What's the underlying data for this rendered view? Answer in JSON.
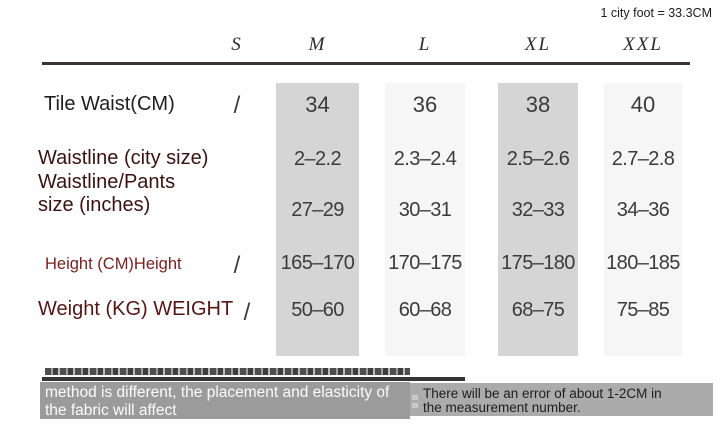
{
  "top": {
    "conversion_note": "1 city foot = 33.3CM"
  },
  "table": {
    "columns": [
      "S",
      "M",
      "L",
      "XL",
      "XXL"
    ],
    "row_tile_waist": {
      "label": "Tile Waist(CM)",
      "s": "/",
      "m": "34",
      "l": "36",
      "xl": "38",
      "xxl": "40"
    },
    "row_waistline": {
      "label_lines": [
        "Waistline (city size)",
        "Waistline/Pants",
        "size (inches)"
      ],
      "city": {
        "m": "2–2.2",
        "l": "2.3–2.4",
        "xl": "2.5–2.6",
        "xxl": "2.7–2.8"
      },
      "inches": {
        "m": "27–29",
        "l": "30–31",
        "xl": "32–33",
        "xxl": "34–36"
      }
    },
    "row_height": {
      "label": "Height (CM)Height",
      "s": "/",
      "m": "165–170",
      "l": "170–175",
      "xl": "175–180",
      "xxl": "180–185"
    },
    "row_weight": {
      "label": "Weight (KG) WEIGHT",
      "s": "/",
      "m": "50–60",
      "l": "60–68",
      "xl": "68–75",
      "xxl": "75–85"
    }
  },
  "footer": {
    "left_note_line1": "method is different, the placement and elasticity of",
    "left_note_line2": "the fabric will affect",
    "right_note_line1": "There will be an error of about 1-2CM in",
    "right_note_line2": "the measurement number."
  },
  "colors": {
    "stripe_dark": "#d5d5d5",
    "stripe_light": "#f6f6f6",
    "label_black": "#1f1f1f",
    "label_maroon_dark": "#3d1111",
    "label_maroon_mid": "#7b1d1d",
    "label_maroon_weight": "#571414",
    "value_text": "#3b3b3b",
    "footer_left_bar": "#9b9b9b",
    "footer_right_bar": "#ababab"
  }
}
